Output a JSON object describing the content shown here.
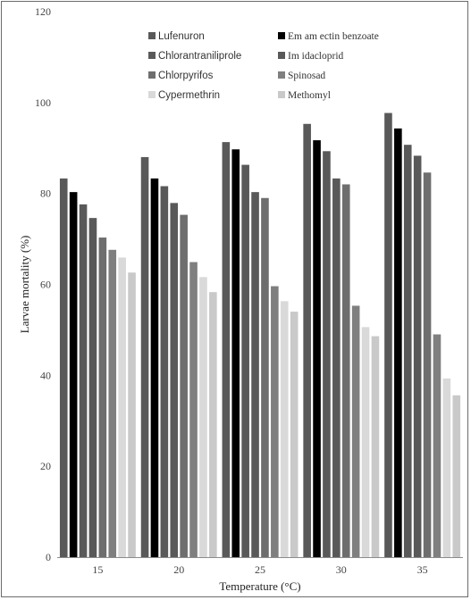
{
  "chart_data": {
    "type": "bar",
    "xlabel": "Temperature (°C)",
    "ylabel": "Larvae mortality (%)",
    "ylim": [
      0,
      120
    ],
    "yticks": [
      0,
      20,
      40,
      60,
      80,
      100,
      120
    ],
    "categories": [
      "15",
      "20",
      "25",
      "30",
      "35"
    ],
    "grid": false,
    "legend_position": "top",
    "series": [
      {
        "name": "Lufenuron",
        "color": "#595959",
        "values": [
          83.3,
          88.0,
          91.3,
          95.3,
          97.7
        ]
      },
      {
        "name": "Em am ectin benzoate",
        "color": "#000000",
        "values": [
          80.3,
          83.3,
          89.7,
          91.7,
          94.3
        ]
      },
      {
        "name": "Chlorantraniliprole",
        "color": "#595959",
        "values": [
          77.6,
          81.6,
          86.3,
          89.3,
          90.7
        ]
      },
      {
        "name": "Im idacloprid",
        "color": "#595959",
        "values": [
          74.6,
          77.9,
          80.3,
          83.3,
          88.3
        ]
      },
      {
        "name": "Chlorpyrifos",
        "color": "#6e6e6e",
        "values": [
          70.3,
          75.3,
          79.0,
          82.0,
          84.6
        ]
      },
      {
        "name": "Spinosad",
        "color": "#7f7f7f",
        "values": [
          67.6,
          64.9,
          59.6,
          55.3,
          49.0
        ]
      },
      {
        "name": "Cypermethrin",
        "color": "#d9d9d9",
        "values": [
          65.9,
          61.6,
          56.3,
          50.6,
          39.3
        ]
      },
      {
        "name": "Methomyl",
        "color": "#c9c9c9",
        "values": [
          62.6,
          58.3,
          54.0,
          48.6,
          35.6
        ]
      }
    ]
  }
}
